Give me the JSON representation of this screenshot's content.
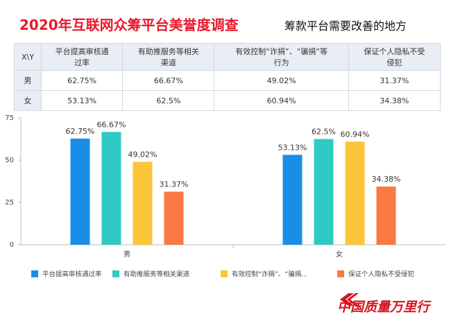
{
  "header": {
    "title": "2020年互联网众筹平台美誉度调查",
    "subtitle": "筹款平台需要改善的地方"
  },
  "table": {
    "columns": [
      "X\\Y",
      "平台提高审核通\n过率",
      "有助推服务等相关\n渠道",
      "有效控制“诈捐”、“骗捐”等\n行为",
      "保证个人隐私不受\n侵犯"
    ],
    "rows": [
      [
        "男",
        "62.75%",
        "66.67%",
        "49.02%",
        "31.37%"
      ],
      [
        "女",
        "53.13%",
        "62.5%",
        "60.94%",
        "34.38%"
      ]
    ]
  },
  "chart_data": {
    "type": "bar",
    "categories": [
      "男",
      "女"
    ],
    "series": [
      {
        "name": "平台提高审核通过率",
        "color": "#1a8ee6",
        "values": [
          62.75,
          53.13
        ],
        "value_labels": [
          "62.75%",
          "53.13%"
        ]
      },
      {
        "name": "有助推服务等相关渠道",
        "color": "#2fcac4",
        "values": [
          66.67,
          62.5
        ],
        "value_labels": [
          "66.67%",
          "62.5%"
        ]
      },
      {
        "name": "有效控制“诈捐”、“骗捐...",
        "color": "#fbc53a",
        "values": [
          49.02,
          60.94
        ],
        "value_labels": [
          "49.02%",
          "60.94%"
        ]
      },
      {
        "name": "保证个人隐私不受侵犯",
        "color": "#fb7944",
        "values": [
          31.37,
          34.38
        ],
        "value_labels": [
          "31.37%",
          "34.38%"
        ]
      }
    ],
    "ylim": [
      0,
      75
    ],
    "yticks": [
      0,
      25,
      50,
      75
    ],
    "grid": false,
    "legend": "bottom"
  },
  "logo": "中国质量万里行"
}
